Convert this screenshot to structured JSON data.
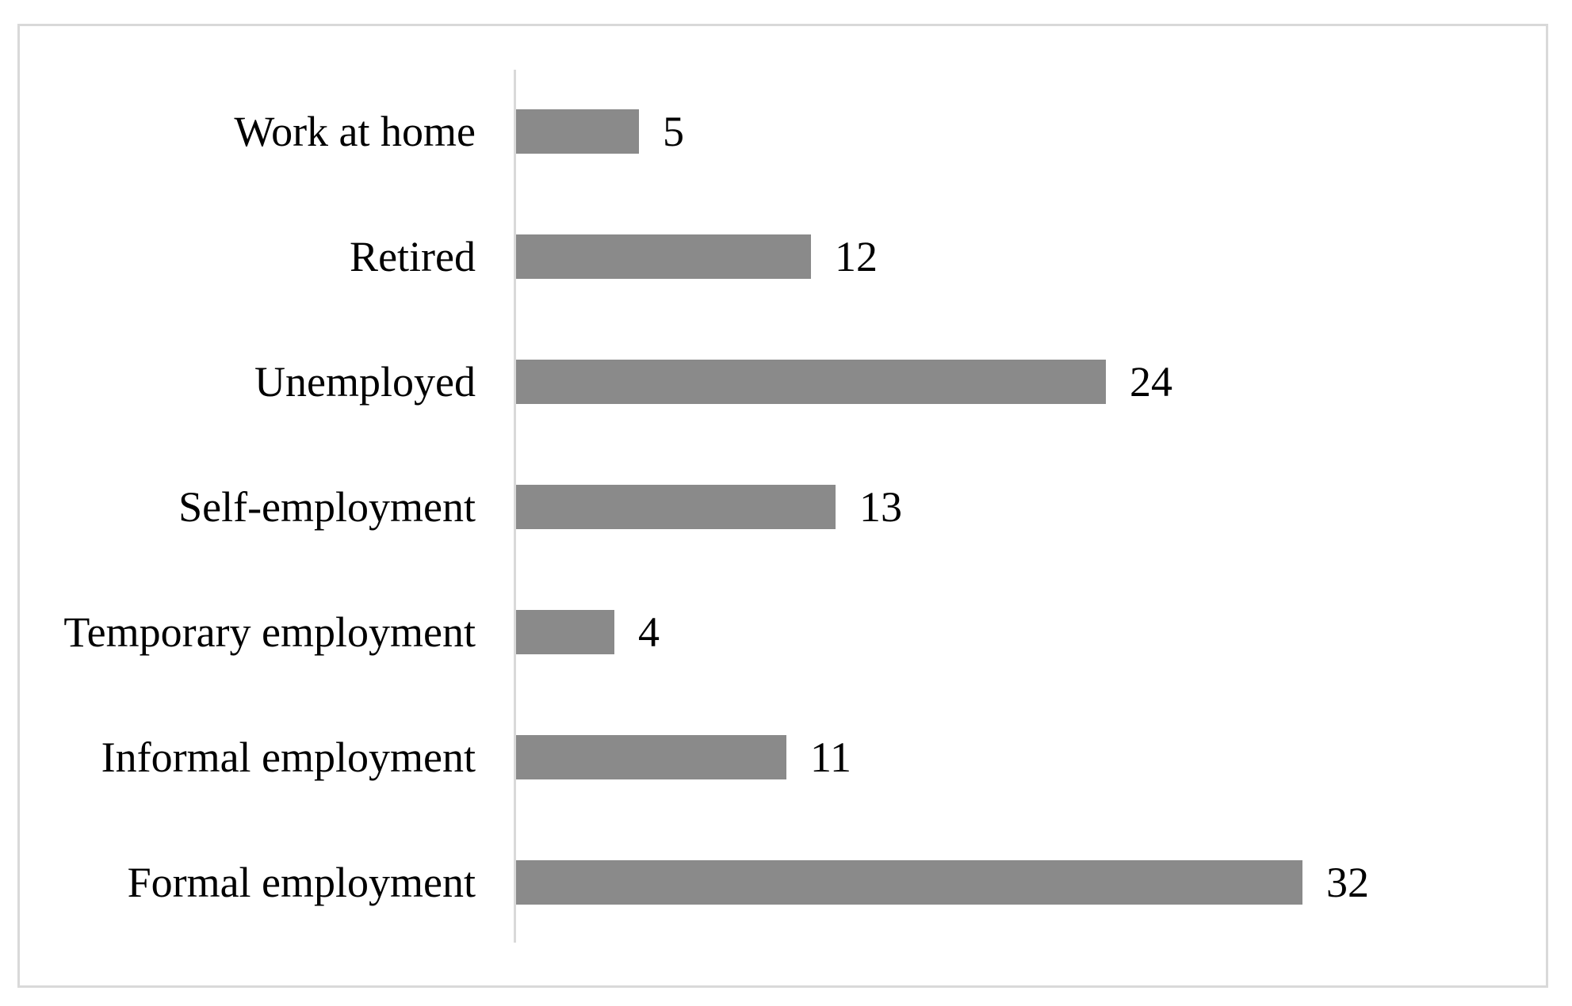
{
  "figure": {
    "background": "#ffffff",
    "border_color": "#d9d9d9"
  },
  "chart_data": {
    "type": "bar",
    "orientation": "horizontal",
    "order": "top-to-bottom",
    "categories": [
      "Work at home",
      "Retired",
      "Unemployed",
      "Self-employment",
      "Temporary employment",
      "Informal employment",
      "Formal employment"
    ],
    "values": [
      5,
      12,
      24,
      13,
      4,
      11,
      32
    ],
    "data_labels": [
      5,
      12,
      24,
      13,
      4,
      11,
      32
    ],
    "title": "",
    "xlabel": "",
    "ylabel": "",
    "xlim": [
      0,
      42
    ],
    "legend": false,
    "gridlines": false,
    "bar_color": "#8a8a8a",
    "axis_color": "#d9d9d9",
    "label_color": "#000000"
  }
}
